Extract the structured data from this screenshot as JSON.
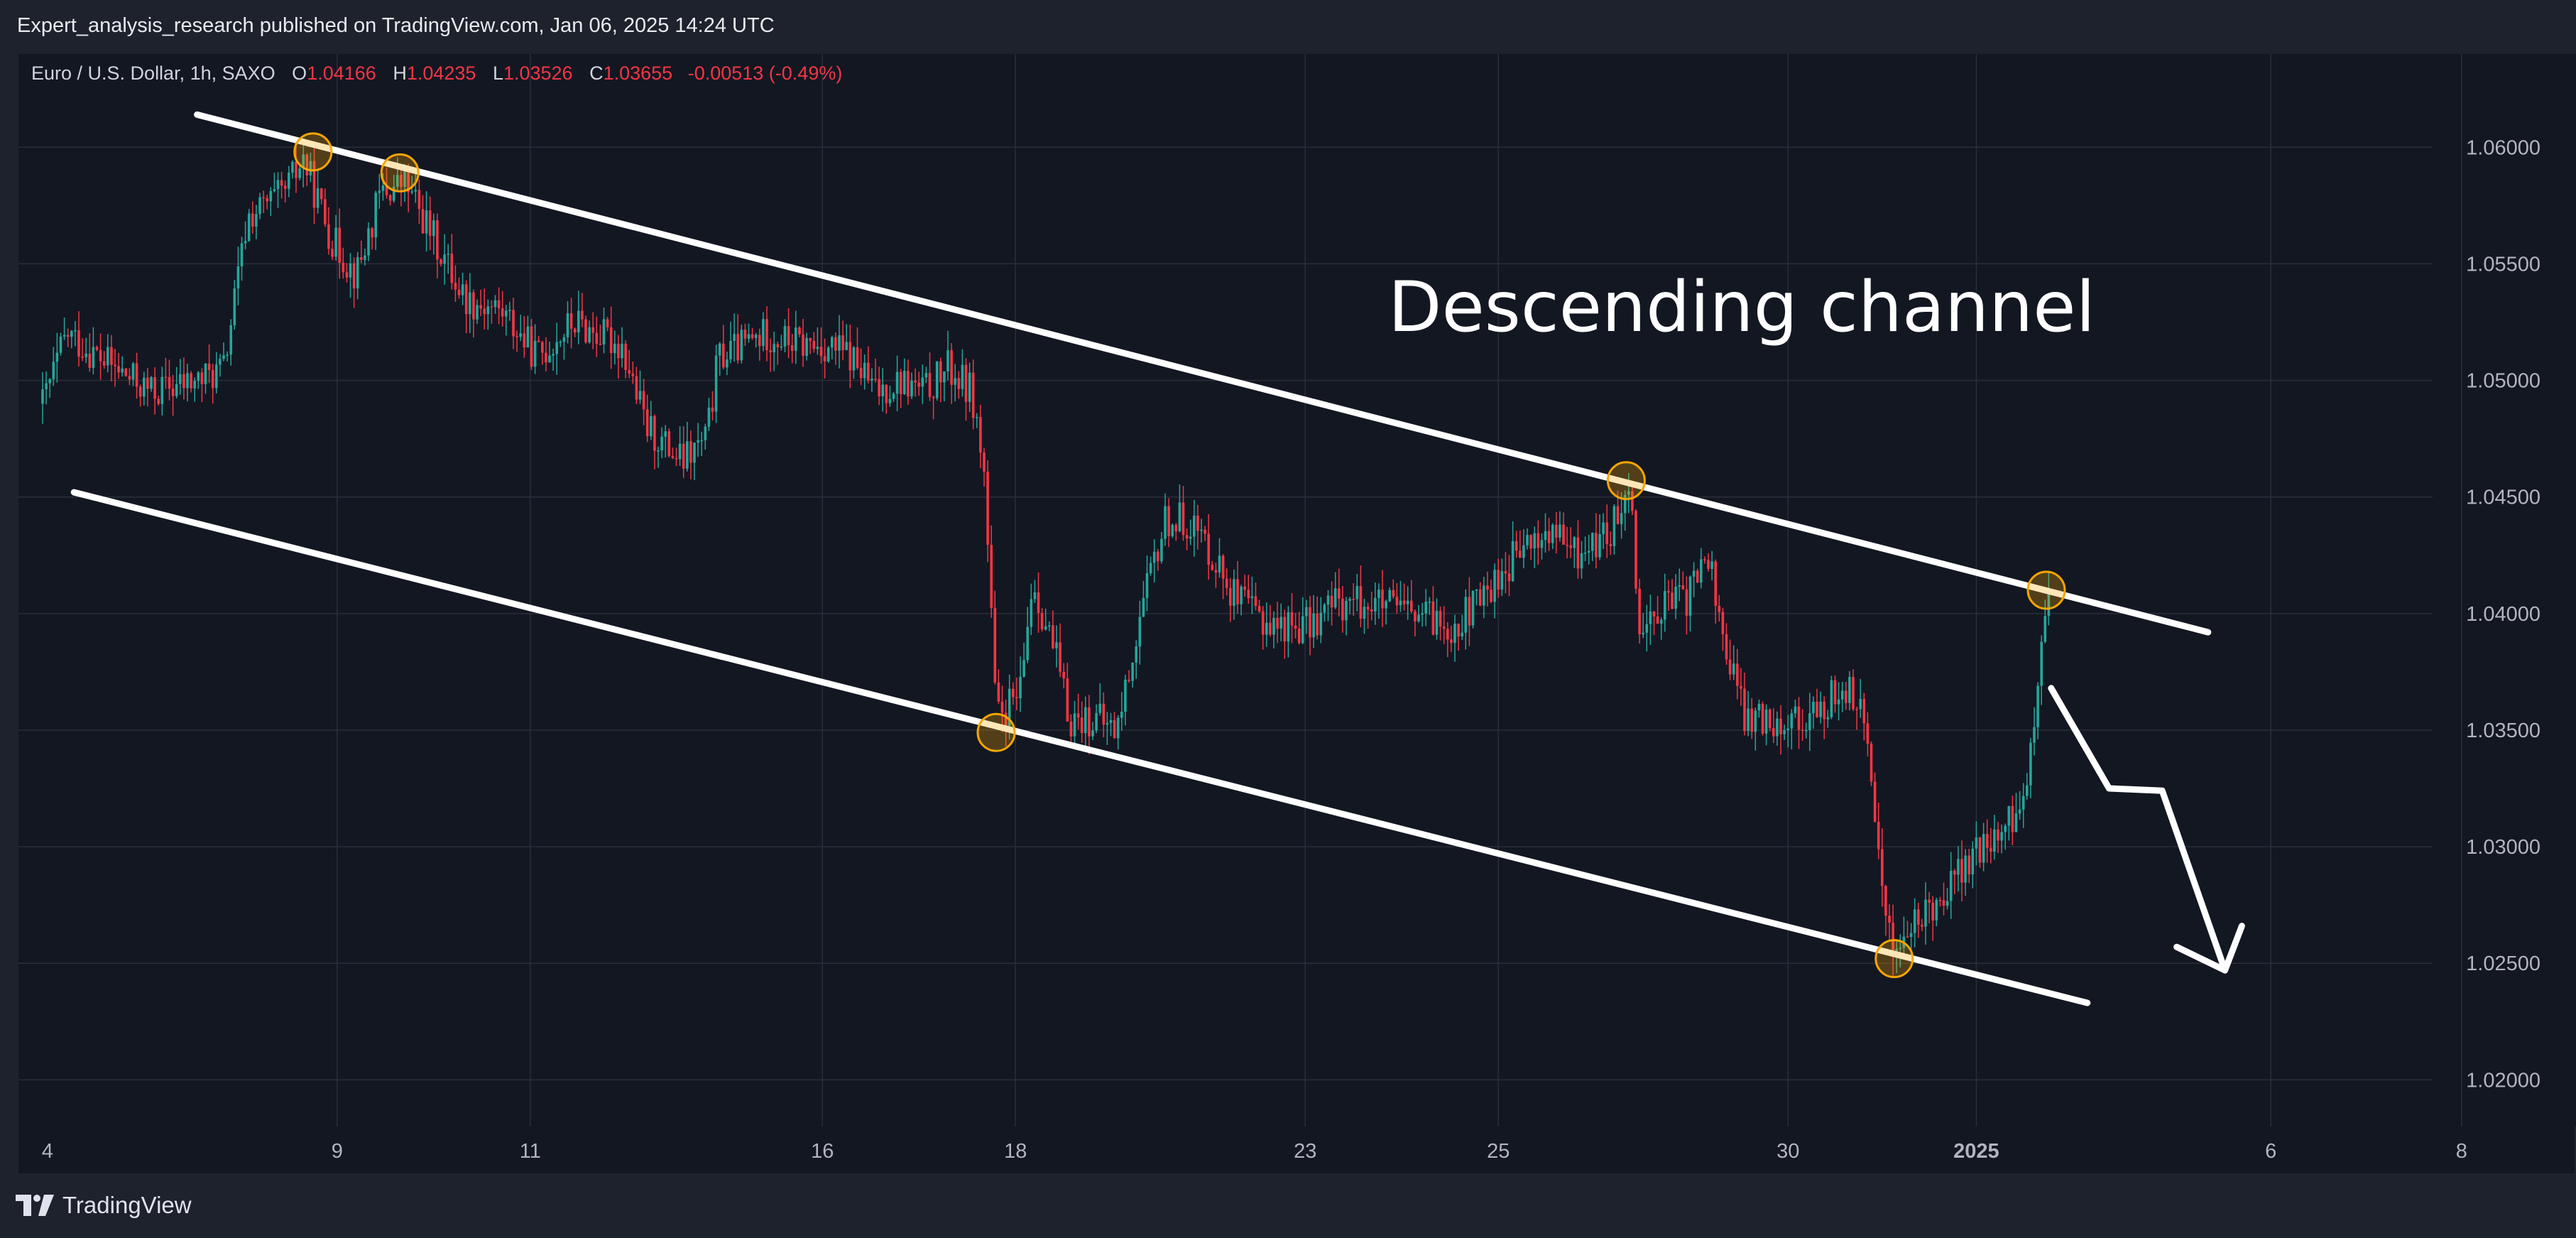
{
  "header": {
    "published": "Expert_analysis_research published on TradingView.com, Jan 06, 2025 14:24 UTC"
  },
  "legend": {
    "symbol": "Euro / U.S. Dollar, 1h, SAXO",
    "open_label": "O",
    "open": "1.04166",
    "high_label": "H",
    "high": "1.04235",
    "low_label": "L",
    "low": "1.03526",
    "close_label": "C",
    "close": "1.03655",
    "change": "-0.00513 (-0.49%)"
  },
  "footer": {
    "brand": "TradingView"
  },
  "colors": {
    "background": "#131722",
    "up": "#26a69a",
    "down": "#f23645",
    "grid": "#2a2e39",
    "annotation": "#ffffff",
    "marker": "#f7a600"
  },
  "chart_data": {
    "type": "candlestick",
    "title": "Euro / U.S. Dollar, 1h, SAXO",
    "annotation_text": "Descending channel",
    "ylim": [
      1.018,
      1.064
    ],
    "y_ticks": [
      "1.06000",
      "1.05500",
      "1.05000",
      "1.04500",
      "1.04000",
      "1.03500",
      "1.03000",
      "1.02500",
      "1.02000"
    ],
    "x_ticks": [
      "4",
      "9",
      "11",
      "16",
      "18",
      "23",
      "25",
      "30",
      "2025",
      "6",
      "8"
    ],
    "price_path": [
      [
        0.01,
        1.049
      ],
      [
        0.02,
        1.052
      ],
      [
        0.04,
        1.0505
      ],
      [
        0.055,
        1.0495
      ],
      [
        0.075,
        1.05
      ],
      [
        0.085,
        1.0505
      ],
      [
        0.095,
        1.057
      ],
      [
        0.11,
        1.058
      ],
      [
        0.118,
        1.0595
      ],
      [
        0.13,
        1.056
      ],
      [
        0.14,
        1.0545
      ],
      [
        0.15,
        1.058
      ],
      [
        0.16,
        1.0585
      ],
      [
        0.175,
        1.0555
      ],
      [
        0.185,
        1.0535
      ],
      [
        0.2,
        1.053
      ],
      [
        0.215,
        1.051
      ],
      [
        0.23,
        1.0525
      ],
      [
        0.25,
        1.0515
      ],
      [
        0.26,
        1.048
      ],
      [
        0.275,
        1.0465
      ],
      [
        0.285,
        1.0475
      ],
      [
        0.29,
        1.051
      ],
      [
        0.31,
        1.052
      ],
      [
        0.325,
        1.0515
      ],
      [
        0.335,
        1.0515
      ],
      [
        0.345,
        1.051
      ],
      [
        0.355,
        1.0495
      ],
      [
        0.365,
        1.05
      ],
      [
        0.375,
        1.0495
      ],
      [
        0.385,
        1.0505
      ],
      [
        0.395,
        1.0495
      ],
      [
        0.4,
        1.046
      ],
      [
        0.405,
        1.0355
      ],
      [
        0.415,
        1.0365
      ],
      [
        0.42,
        1.0415
      ],
      [
        0.43,
        1.038
      ],
      [
        0.435,
        1.0355
      ],
      [
        0.445,
        1.0355
      ],
      [
        0.455,
        1.035
      ],
      [
        0.465,
        1.04
      ],
      [
        0.475,
        1.044
      ],
      [
        0.485,
        1.044
      ],
      [
        0.495,
        1.0425
      ],
      [
        0.505,
        1.0405
      ],
      [
        0.52,
        1.0395
      ],
      [
        0.535,
        1.0395
      ],
      [
        0.545,
        1.0405
      ],
      [
        0.56,
        1.0405
      ],
      [
        0.575,
        1.04
      ],
      [
        0.595,
        1.0395
      ],
      [
        0.605,
        1.0405
      ],
      [
        0.62,
        1.0425
      ],
      [
        0.635,
        1.0435
      ],
      [
        0.645,
        1.0425
      ],
      [
        0.66,
        1.0435
      ],
      [
        0.667,
        1.046
      ],
      [
        0.672,
        1.039
      ],
      [
        0.68,
        1.0405
      ],
      [
        0.69,
        1.0405
      ],
      [
        0.7,
        1.0425
      ],
      [
        0.705,
        1.0395
      ],
      [
        0.715,
        1.0355
      ],
      [
        0.73,
        1.0355
      ],
      [
        0.745,
        1.0355
      ],
      [
        0.755,
        1.037
      ],
      [
        0.763,
        1.036
      ],
      [
        0.77,
        1.0305
      ],
      [
        0.776,
        1.0255
      ],
      [
        0.785,
        1.0265
      ],
      [
        0.8,
        1.0285
      ],
      [
        0.815,
        1.03
      ],
      [
        0.83,
        1.0315
      ],
      [
        0.837,
        1.0375
      ],
      [
        0.842,
        1.0415
      ],
      [
        0.846,
        1.0395
      ],
      [
        0.84,
        1.0365
      ]
    ],
    "annotations": {
      "channel_upper": [
        [
          0.074,
          1.0614
        ],
        [
          0.907,
          1.0392
        ]
      ],
      "channel_lower": [
        [
          0.023,
          1.0452
        ],
        [
          0.857,
          1.0233
        ]
      ],
      "touch_points": [
        [
          0.122,
          1.0598
        ],
        [
          0.158,
          1.0589
        ],
        [
          0.405,
          1.0349
        ],
        [
          0.666,
          1.0457
        ],
        [
          0.777,
          1.0252
        ],
        [
          0.84,
          1.041
        ]
      ],
      "projection_path": [
        [
          0.842,
          1.0368
        ],
        [
          0.866,
          1.0325
        ],
        [
          0.888,
          1.0324
        ],
        [
          0.914,
          1.0247
        ]
      ],
      "arrow_head": [
        [
          0.894,
          1.0257
        ],
        [
          0.914,
          1.0247
        ],
        [
          0.921,
          1.0266
        ]
      ]
    }
  }
}
